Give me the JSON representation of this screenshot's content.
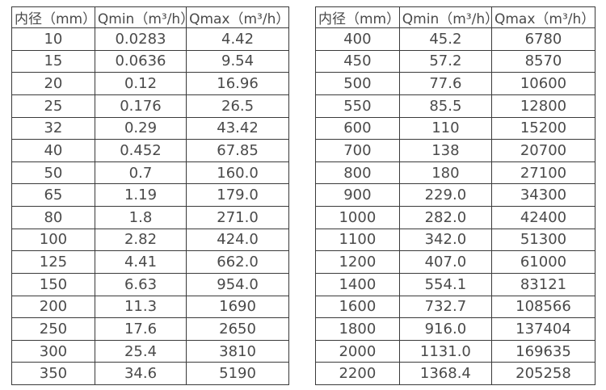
{
  "colors": {
    "text": "#4a4a4a",
    "border": "#3a3a3a",
    "background": "#ffffff"
  },
  "left_table": {
    "columns": [
      "内径（mm）",
      "Qmin（m³/h）",
      "Qmax（m³/h）"
    ],
    "rows": [
      [
        "10",
        "0.0283",
        "4.42"
      ],
      [
        "15",
        "0.0636",
        "9.54"
      ],
      [
        "20",
        "0.12",
        "16.96"
      ],
      [
        "25",
        "0.176",
        "26.5"
      ],
      [
        "32",
        "0.29",
        "43.42"
      ],
      [
        "40",
        "0.452",
        "67.85"
      ],
      [
        "50",
        "0.7",
        "160.0"
      ],
      [
        "65",
        "1.19",
        "179.0"
      ],
      [
        "80",
        "1.8",
        "271.0"
      ],
      [
        "100",
        "2.82",
        "424.0"
      ],
      [
        "125",
        "4.41",
        "662.0"
      ],
      [
        "150",
        "6.63",
        "954.0"
      ],
      [
        "200",
        "11.3",
        "1690"
      ],
      [
        "250",
        "17.6",
        "2650"
      ],
      [
        "300",
        "25.4",
        "3810"
      ],
      [
        "350",
        "34.6",
        "5190"
      ]
    ]
  },
  "right_table": {
    "columns": [
      "内径（mm）",
      "Qmin（m³/h）",
      "Qmax（m³/h）"
    ],
    "rows": [
      [
        "400",
        "45.2",
        "6780"
      ],
      [
        "450",
        "57.2",
        "8570"
      ],
      [
        "500",
        "77.6",
        "10600"
      ],
      [
        "550",
        "85.5",
        "12800"
      ],
      [
        "600",
        "110",
        "15200"
      ],
      [
        "700",
        "138",
        "20700"
      ],
      [
        "800",
        "180",
        "27100"
      ],
      [
        "900",
        "229.0",
        "34300"
      ],
      [
        "1000",
        "282.0",
        "42400"
      ],
      [
        "1100",
        "342.0",
        "51300"
      ],
      [
        "1200",
        "407.0",
        "61000"
      ],
      [
        "1400",
        "554.1",
        "83121"
      ],
      [
        "1600",
        "732.7",
        "108566"
      ],
      [
        "1800",
        "916.0",
        "137404"
      ],
      [
        "2000",
        "1131.0",
        "169635"
      ],
      [
        "2200",
        "1368.4",
        "205258"
      ]
    ]
  }
}
